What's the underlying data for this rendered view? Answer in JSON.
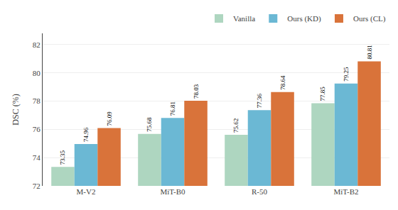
{
  "chart_data": {
    "type": "bar",
    "categories": [
      "M-V2",
      "MiT-B0",
      "R-50",
      "MiT-B2"
    ],
    "series": [
      {
        "name": "Vanilla",
        "color": "#aed6c0",
        "values": [
          73.35,
          75.68,
          75.62,
          77.85
        ]
      },
      {
        "name": "Ours (KD)",
        "color": "#6bb8d4",
        "values": [
          74.96,
          76.81,
          77.36,
          79.25
        ]
      },
      {
        "name": "Ours (CL)",
        "color": "#d9733a",
        "values": [
          76.09,
          78.03,
          78.64,
          80.81
        ]
      }
    ],
    "ylabel": "DSC (%)",
    "ylim": [
      72,
      82.8
    ],
    "yticks": [
      72,
      74,
      76,
      78,
      80,
      82
    ],
    "grid": true,
    "legend": "upper right",
    "data_labels": true
  }
}
